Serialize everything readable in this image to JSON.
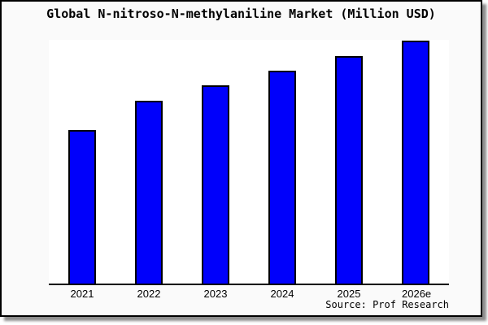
{
  "panel": {
    "background": "#fafafa",
    "border_color": "#000000",
    "plot_background": "#ffffff"
  },
  "chart_data": {
    "type": "bar",
    "title": "Global N-nitroso-N-methylaniline Market (Million USD)",
    "categories": [
      "2021",
      "2022",
      "2023",
      "2024",
      "2025",
      "2026e"
    ],
    "values": [
      63,
      75,
      81.5,
      87.5,
      93.5,
      99.7
    ],
    "value_note": "y-axis has no tick labels; values estimated as percent of plot height (2026e bar nearly touches plot top)",
    "ylim": [
      0,
      100
    ],
    "xlabel": "",
    "ylabel": "",
    "grid": false,
    "legend": false,
    "bar_color": "#0000fb",
    "bar_border_color": "#000000",
    "axis_line_color": "#000000"
  },
  "source": {
    "label": "Source: Prof Research"
  }
}
